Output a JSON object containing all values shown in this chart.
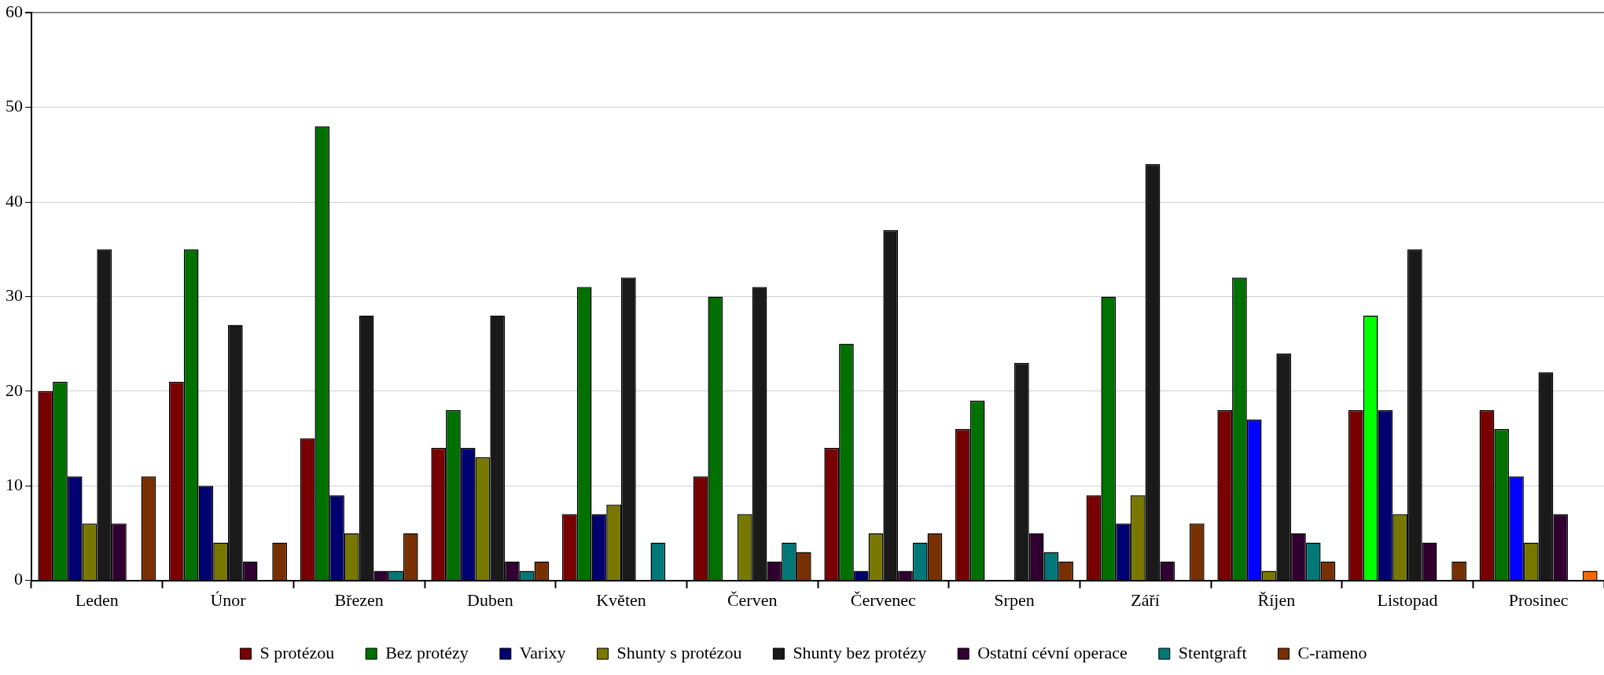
{
  "chart_data": {
    "type": "bar",
    "categories": [
      "Leden",
      "Únor",
      "Březen",
      "Duben",
      "Květen",
      "Červen",
      "Červenec",
      "Srpen",
      "Září",
      "Říjen",
      "Listopad",
      "Prosinec"
    ],
    "series": [
      {
        "name": "S protézou",
        "color": "#780000",
        "values": [
          20,
          21,
          15,
          14,
          7,
          11,
          14,
          16,
          9,
          18,
          18,
          18
        ]
      },
      {
        "name": "Bez protézy",
        "color": "#007000",
        "colors": [
          "#007000",
          "#007000",
          "#007000",
          "#007000",
          "#007000",
          "#007000",
          "#007000",
          "#007000",
          "#007000",
          "#007000",
          "#00ff00",
          "#007000"
        ],
        "values": [
          21,
          35,
          48,
          18,
          31,
          30,
          25,
          19,
          30,
          32,
          28,
          16
        ]
      },
      {
        "name": "Varixy",
        "color": "#000070",
        "colors": [
          "#000070",
          "#000070",
          "#000070",
          "#000070",
          "#000070",
          "#000070",
          "#000070",
          "#000070",
          "#000070",
          "#0000ff",
          "#000070",
          "#0000ff"
        ],
        "values": [
          11,
          10,
          9,
          14,
          7,
          null,
          1,
          null,
          6,
          17,
          18,
          11
        ]
      },
      {
        "name": "Shunty s protézou",
        "color": "#787800",
        "values": [
          6,
          4,
          5,
          13,
          8,
          7,
          5,
          null,
          9,
          1,
          7,
          4
        ]
      },
      {
        "name": "Shunty bez protézy",
        "color": "#1a1a1a",
        "values": [
          35,
          27,
          28,
          28,
          32,
          31,
          37,
          23,
          44,
          24,
          35,
          22
        ]
      },
      {
        "name": "Ostatní cévní operace",
        "color": "#300030",
        "values": [
          6,
          2,
          1,
          2,
          null,
          2,
          1,
          5,
          2,
          5,
          4,
          7
        ]
      },
      {
        "name": "Stentgraft",
        "color": "#007878",
        "values": [
          null,
          null,
          1,
          1,
          4,
          4,
          4,
          3,
          null,
          4,
          null,
          null
        ]
      },
      {
        "name": "C-rameno",
        "color": "#783000",
        "colors": [
          "#783000",
          "#783000",
          "#783000",
          "#783000",
          "#783000",
          "#783000",
          "#783000",
          "#783000",
          "#783000",
          "#783000",
          "#783000",
          "#ff6600"
        ],
        "values": [
          11,
          4,
          5,
          2,
          null,
          3,
          5,
          2,
          6,
          2,
          2,
          1
        ]
      }
    ],
    "ylim": [
      0,
      60
    ],
    "yticks": [
      0,
      10,
      20,
      30,
      40,
      50,
      60
    ],
    "grid": "y",
    "legend": "bottom"
  }
}
